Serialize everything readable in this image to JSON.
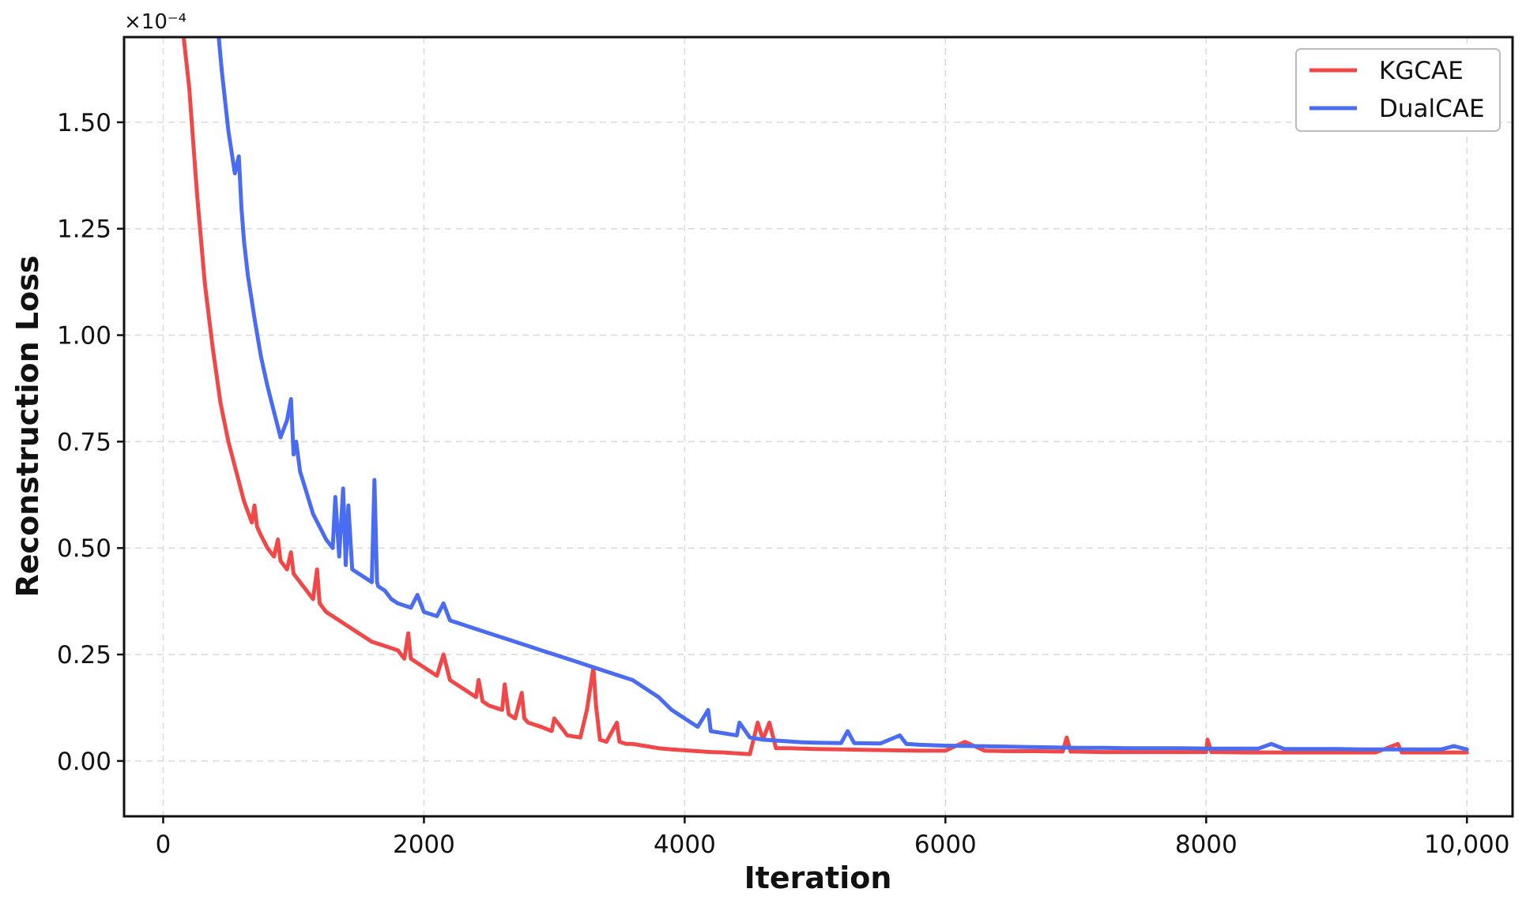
{
  "chart_data": {
    "type": "line",
    "title": "",
    "xlabel": "Iteration",
    "ylabel": "Reconstruction Loss",
    "y_multiplier_label": "×10⁻⁴",
    "xlim": [
      -300,
      10350
    ],
    "ylim": [
      -0.13,
      1.7
    ],
    "xticks": [
      0,
      2000,
      4000,
      6000,
      8000,
      10000
    ],
    "xtick_labels": [
      "0",
      "2000",
      "4000",
      "6000",
      "8000",
      "10,000"
    ],
    "yticks": [
      0.0,
      0.25,
      0.5,
      0.75,
      1.0,
      1.25,
      1.5
    ],
    "ytick_labels": [
      "0.00",
      "0.25",
      "0.50",
      "0.75",
      "1.00",
      "1.25",
      "1.50"
    ],
    "grid": true,
    "legend_position": "top-right",
    "series": [
      {
        "name": "KGCAE",
        "color": "#f04848",
        "x": [
          150,
          200,
          260,
          320,
          380,
          440,
          500,
          560,
          620,
          680,
          700,
          720,
          750,
          800,
          850,
          880,
          900,
          950,
          980,
          1000,
          1050,
          1100,
          1150,
          1180,
          1200,
          1250,
          1300,
          1400,
          1500,
          1600,
          1700,
          1800,
          1850,
          1880,
          1900,
          2000,
          2100,
          2150,
          2200,
          2300,
          2400,
          2420,
          2450,
          2500,
          2600,
          2620,
          2650,
          2700,
          2750,
          2770,
          2800,
          2900,
          2980,
          3000,
          3100,
          3200,
          3250,
          3300,
          3320,
          3350,
          3400,
          3480,
          3500,
          3550,
          3600,
          3700,
          3800,
          3900,
          4000,
          4100,
          4200,
          4300,
          4400,
          4500,
          4560,
          4600,
          4650,
          4700,
          4800,
          4900,
          5000,
          5200,
          5400,
          5600,
          5800,
          6000,
          6150,
          6300,
          6500,
          6700,
          6900,
          6930,
          6960,
          7000,
          7200,
          7400,
          7600,
          7800,
          8000,
          8010,
          8040,
          8100,
          8300,
          8500,
          8700,
          8900,
          9100,
          9300,
          9470,
          9500,
          9600,
          9800,
          10000
        ],
        "values": [
          1.72,
          1.58,
          1.33,
          1.12,
          0.97,
          0.84,
          0.75,
          0.68,
          0.61,
          0.56,
          0.6,
          0.55,
          0.53,
          0.5,
          0.48,
          0.52,
          0.47,
          0.45,
          0.49,
          0.44,
          0.42,
          0.4,
          0.38,
          0.45,
          0.37,
          0.35,
          0.34,
          0.32,
          0.3,
          0.28,
          0.27,
          0.26,
          0.24,
          0.3,
          0.24,
          0.22,
          0.2,
          0.25,
          0.19,
          0.17,
          0.15,
          0.19,
          0.14,
          0.13,
          0.12,
          0.18,
          0.11,
          0.1,
          0.16,
          0.1,
          0.09,
          0.08,
          0.07,
          0.1,
          0.06,
          0.055,
          0.12,
          0.22,
          0.13,
          0.05,
          0.045,
          0.09,
          0.045,
          0.04,
          0.04,
          0.035,
          0.03,
          0.027,
          0.025,
          0.023,
          0.021,
          0.02,
          0.018,
          0.016,
          0.09,
          0.05,
          0.09,
          0.03,
          0.03,
          0.029,
          0.028,
          0.027,
          0.026,
          0.025,
          0.024,
          0.024,
          0.045,
          0.024,
          0.023,
          0.023,
          0.022,
          0.055,
          0.022,
          0.022,
          0.021,
          0.021,
          0.021,
          0.021,
          0.021,
          0.05,
          0.021,
          0.021,
          0.02,
          0.02,
          0.02,
          0.02,
          0.02,
          0.02,
          0.04,
          0.02,
          0.02,
          0.02,
          0.02
        ]
      },
      {
        "name": "DualCAE",
        "color": "#4a6cf0",
        "x": [
          420,
          450,
          500,
          550,
          580,
          600,
          620,
          650,
          700,
          750,
          800,
          850,
          900,
          950,
          980,
          1000,
          1020,
          1050,
          1100,
          1150,
          1200,
          1250,
          1300,
          1320,
          1350,
          1380,
          1400,
          1420,
          1450,
          1500,
          1550,
          1600,
          1620,
          1640,
          1650,
          1700,
          1750,
          1800,
          1900,
          1950,
          2000,
          2100,
          2150,
          2200,
          2300,
          2400,
          2500,
          2600,
          2700,
          2800,
          2900,
          3000,
          3100,
          3200,
          3300,
          3400,
          3500,
          3600,
          3700,
          3800,
          3900,
          4000,
          4100,
          4180,
          4200,
          4300,
          4400,
          4420,
          4500,
          4600,
          4700,
          4800,
          4900,
          5000,
          5200,
          5250,
          5300,
          5500,
          5650,
          5700,
          5800,
          6000,
          6200,
          6400,
          6600,
          6800,
          7000,
          7200,
          7400,
          7600,
          7800,
          8000,
          8200,
          8400,
          8500,
          8600,
          8800,
          9000,
          9200,
          9400,
          9600,
          9800,
          9900,
          10000
        ],
        "values": [
          1.72,
          1.62,
          1.48,
          1.38,
          1.42,
          1.3,
          1.22,
          1.14,
          1.04,
          0.95,
          0.88,
          0.82,
          0.76,
          0.8,
          0.85,
          0.72,
          0.75,
          0.68,
          0.63,
          0.58,
          0.55,
          0.52,
          0.5,
          0.62,
          0.48,
          0.64,
          0.46,
          0.6,
          0.45,
          0.44,
          0.43,
          0.42,
          0.66,
          0.42,
          0.41,
          0.4,
          0.38,
          0.37,
          0.36,
          0.39,
          0.35,
          0.34,
          0.37,
          0.33,
          0.32,
          0.31,
          0.3,
          0.29,
          0.28,
          0.27,
          0.26,
          0.25,
          0.24,
          0.23,
          0.22,
          0.21,
          0.2,
          0.19,
          0.17,
          0.15,
          0.12,
          0.1,
          0.08,
          0.12,
          0.07,
          0.065,
          0.06,
          0.09,
          0.055,
          0.05,
          0.048,
          0.046,
          0.044,
          0.043,
          0.042,
          0.07,
          0.042,
          0.041,
          0.06,
          0.04,
          0.038,
          0.036,
          0.035,
          0.034,
          0.033,
          0.032,
          0.031,
          0.031,
          0.03,
          0.03,
          0.03,
          0.029,
          0.029,
          0.029,
          0.04,
          0.028,
          0.028,
          0.028,
          0.027,
          0.027,
          0.027,
          0.027,
          0.035,
          0.027
        ]
      }
    ]
  }
}
